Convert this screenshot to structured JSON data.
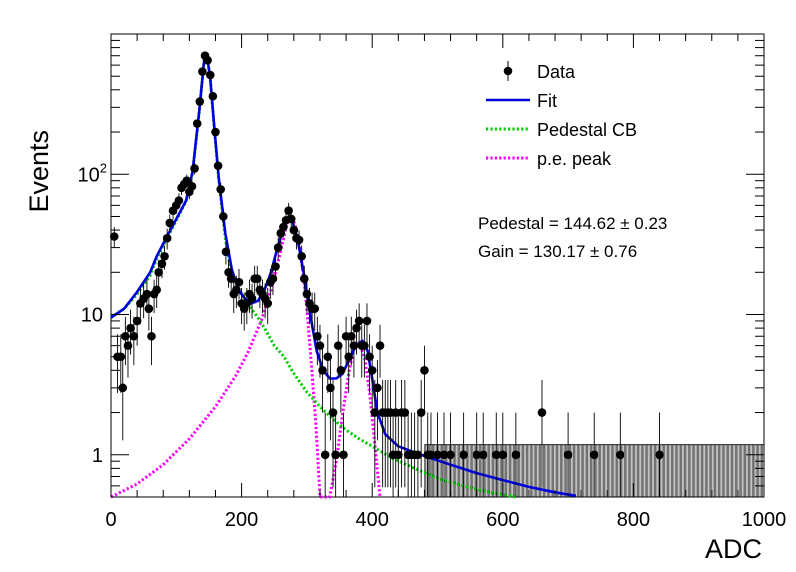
{
  "chart_data": {
    "type": "scatter",
    "xlabel": "ADC",
    "ylabel": "Events",
    "xlim": [
      0,
      1000
    ],
    "ylim": [
      0.5,
      1000
    ],
    "yscale": "log",
    "grid": false,
    "legend_position": "top-right",
    "x_ticks": [
      0,
      200,
      400,
      600,
      800,
      1000
    ],
    "x_tick_labels": [
      "0",
      "200",
      "400",
      "600",
      "800",
      "1000"
    ],
    "y_ticks": [
      1,
      10,
      100
    ],
    "y_tick_labels": [
      "1",
      "10",
      "10^2"
    ],
    "annotations": [
      "Pedestal = 144.62 ± 0.23",
      "Gain = 130.17 ± 0.76"
    ],
    "series": [
      {
        "name": "Data",
        "kind": "points",
        "color": "#000000",
        "points": [
          [
            5,
            36
          ],
          [
            10,
            5
          ],
          [
            15,
            5
          ],
          [
            18,
            3
          ],
          [
            22,
            7
          ],
          [
            26,
            6
          ],
          [
            30,
            8
          ],
          [
            35,
            7
          ],
          [
            40,
            9
          ],
          [
            45,
            12
          ],
          [
            50,
            13
          ],
          [
            55,
            14
          ],
          [
            58,
            11
          ],
          [
            62,
            7
          ],
          [
            66,
            14
          ],
          [
            70,
            15
          ],
          [
            73,
            20
          ],
          [
            78,
            23
          ],
          [
            82,
            26
          ],
          [
            86,
            35
          ],
          [
            90,
            45
          ],
          [
            95,
            55
          ],
          [
            100,
            60
          ],
          [
            104,
            65
          ],
          [
            108,
            80
          ],
          [
            112,
            85
          ],
          [
            116,
            90
          ],
          [
            120,
            75
          ],
          [
            124,
            82
          ],
          [
            128,
            110
          ],
          [
            132,
            230
          ],
          [
            136,
            330
          ],
          [
            140,
            540
          ],
          [
            144,
            700
          ],
          [
            148,
            650
          ],
          [
            152,
            510
          ],
          [
            156,
            360
          ],
          [
            160,
            200
          ],
          [
            164,
            115
          ],
          [
            168,
            78
          ],
          [
            172,
            50
          ],
          [
            176,
            28
          ],
          [
            180,
            20
          ],
          [
            184,
            18
          ],
          [
            188,
            14
          ],
          [
            192,
            15
          ],
          [
            196,
            17
          ],
          [
            200,
            12
          ],
          [
            204,
            11
          ],
          [
            208,
            12
          ],
          [
            212,
            14
          ],
          [
            216,
            13
          ],
          [
            220,
            18
          ],
          [
            224,
            18
          ],
          [
            228,
            15
          ],
          [
            232,
            14
          ],
          [
            236,
            13
          ],
          [
            240,
            12
          ],
          [
            244,
            17
          ],
          [
            248,
            18
          ],
          [
            252,
            22
          ],
          [
            256,
            30
          ],
          [
            260,
            38
          ],
          [
            264,
            42
          ],
          [
            268,
            47
          ],
          [
            272,
            55
          ],
          [
            276,
            48
          ],
          [
            280,
            40
          ],
          [
            284,
            35
          ],
          [
            288,
            34
          ],
          [
            292,
            26
          ],
          [
            296,
            18
          ],
          [
            300,
            14
          ],
          [
            304,
            12
          ],
          [
            308,
            11
          ],
          [
            312,
            11
          ],
          [
            316,
            7
          ],
          [
            320,
            6
          ],
          [
            324,
            4
          ],
          [
            328,
            1
          ],
          [
            332,
            5
          ],
          [
            336,
            3
          ],
          [
            340,
            2
          ],
          [
            344,
            1
          ],
          [
            348,
            6
          ],
          [
            352,
            4
          ],
          [
            356,
            1
          ],
          [
            360,
            7
          ],
          [
            364,
            5
          ],
          [
            368,
            7
          ],
          [
            372,
            6
          ],
          [
            376,
            8
          ],
          [
            380,
            9
          ],
          [
            384,
            6
          ],
          [
            388,
            6
          ],
          [
            392,
            9
          ],
          [
            396,
            5
          ],
          [
            400,
            4
          ],
          [
            404,
            2
          ],
          [
            408,
            3
          ],
          [
            412,
            6
          ],
          [
            416,
            2
          ],
          [
            420,
            2
          ],
          [
            424,
            2
          ],
          [
            428,
            2
          ],
          [
            432,
            1
          ],
          [
            436,
            2
          ],
          [
            440,
            1
          ],
          [
            445,
            2
          ],
          [
            450,
            2
          ],
          [
            455,
            1
          ],
          [
            460,
            1
          ],
          [
            465,
            1
          ],
          [
            470,
            1
          ],
          [
            475,
            2
          ],
          [
            480,
            4
          ],
          [
            485,
            1
          ],
          [
            490,
            1
          ],
          [
            500,
            1
          ],
          [
            510,
            1
          ],
          [
            520,
            1
          ],
          [
            540,
            1
          ],
          [
            560,
            1
          ],
          [
            570,
            1
          ],
          [
            590,
            1
          ],
          [
            600,
            1
          ],
          [
            620,
            1
          ],
          [
            660,
            2
          ],
          [
            700,
            1
          ],
          [
            740,
            1
          ],
          [
            780,
            1
          ],
          [
            840,
            1
          ]
        ]
      },
      {
        "name": "Fit",
        "kind": "line",
        "color": "#0000dd",
        "points": [
          [
            0,
            9.5
          ],
          [
            20,
            11
          ],
          [
            40,
            14.5
          ],
          [
            60,
            20
          ],
          [
            70,
            26
          ],
          [
            80,
            32
          ],
          [
            100,
            48
          ],
          [
            115,
            65
          ],
          [
            125,
            105
          ],
          [
            135,
            280
          ],
          [
            143,
            680
          ],
          [
            147,
            700
          ],
          [
            152,
            480
          ],
          [
            158,
            220
          ],
          [
            165,
            95
          ],
          [
            175,
            38
          ],
          [
            185,
            21
          ],
          [
            195,
            15
          ],
          [
            205,
            13
          ],
          [
            215,
            12
          ],
          [
            225,
            12.5
          ],
          [
            235,
            15
          ],
          [
            245,
            20
          ],
          [
            255,
            30
          ],
          [
            265,
            43
          ],
          [
            272,
            50
          ],
          [
            278,
            46
          ],
          [
            285,
            36
          ],
          [
            295,
            20
          ],
          [
            305,
            10
          ],
          [
            315,
            5.5
          ],
          [
            325,
            4
          ],
          [
            335,
            3.5
          ],
          [
            345,
            3.5
          ],
          [
            355,
            3.8
          ],
          [
            365,
            4.8
          ],
          [
            375,
            6
          ],
          [
            385,
            6.5
          ],
          [
            393,
            5.5
          ],
          [
            400,
            3.5
          ],
          [
            408,
            2
          ],
          [
            420,
            1.4
          ],
          [
            440,
            1.15
          ],
          [
            480,
            0.98
          ],
          [
            520,
            0.85
          ],
          [
            560,
            0.74
          ],
          [
            600,
            0.66
          ],
          [
            640,
            0.59
          ],
          [
            680,
            0.54
          ],
          [
            712,
            0.51
          ]
        ]
      },
      {
        "name": "Pedestal CB",
        "kind": "dotted",
        "color": "#00cc00",
        "points": [
          [
            0,
            9.5
          ],
          [
            20,
            11
          ],
          [
            40,
            14
          ],
          [
            60,
            19
          ],
          [
            70,
            25
          ],
          [
            80,
            31
          ],
          [
            100,
            47
          ],
          [
            115,
            64
          ],
          [
            125,
            103
          ],
          [
            135,
            275
          ],
          [
            143,
            675
          ],
          [
            147,
            695
          ],
          [
            152,
            475
          ],
          [
            158,
            215
          ],
          [
            165,
            92
          ],
          [
            175,
            35
          ],
          [
            185,
            19
          ],
          [
            200,
            14
          ],
          [
            215,
            11
          ],
          [
            225,
            9.5
          ],
          [
            235,
            8
          ],
          [
            250,
            6
          ],
          [
            265,
            5
          ],
          [
            280,
            3.8
          ],
          [
            300,
            2.8
          ],
          [
            320,
            2.2
          ],
          [
            340,
            1.8
          ],
          [
            360,
            1.5
          ],
          [
            380,
            1.3
          ],
          [
            400,
            1.15
          ],
          [
            430,
            0.95
          ],
          [
            460,
            0.82
          ],
          [
            500,
            0.68
          ],
          [
            540,
            0.6
          ],
          [
            580,
            0.54
          ],
          [
            620,
            0.5
          ]
        ]
      },
      {
        "name": "p.e. peak",
        "kind": "dotted",
        "color": "#ff00ff",
        "points": [
          [
            0,
            0.5
          ],
          [
            40,
            0.62
          ],
          [
            80,
            0.85
          ],
          [
            120,
            1.3
          ],
          [
            160,
            2.2
          ],
          [
            190,
            3.6
          ],
          [
            210,
            5.4
          ],
          [
            230,
            9
          ],
          [
            245,
            15
          ],
          [
            258,
            26
          ],
          [
            268,
            42
          ],
          [
            275,
            50
          ],
          [
            282,
            44
          ],
          [
            290,
            28
          ],
          [
            298,
            14
          ],
          [
            306,
            5
          ],
          [
            314,
            1.6
          ],
          [
            320,
            0.5
          ],
          [
            335,
            0.5
          ],
          [
            345,
            0.9
          ],
          [
            355,
            2
          ],
          [
            365,
            4
          ],
          [
            373,
            6
          ],
          [
            380,
            6.3
          ],
          [
            388,
            5
          ],
          [
            396,
            2.8
          ],
          [
            404,
            1.2
          ],
          [
            412,
            0.5
          ]
        ]
      }
    ]
  },
  "legend": {
    "items": [
      {
        "label": "Data",
        "style": "marker",
        "color": "#000000"
      },
      {
        "label": "Fit",
        "style": "line",
        "color": "#0000dd"
      },
      {
        "label": "Pedestal CB",
        "style": "dotted",
        "color": "#00cc00"
      },
      {
        "label": "p.e. peak",
        "style": "dotted",
        "color": "#ff00ff"
      }
    ]
  }
}
